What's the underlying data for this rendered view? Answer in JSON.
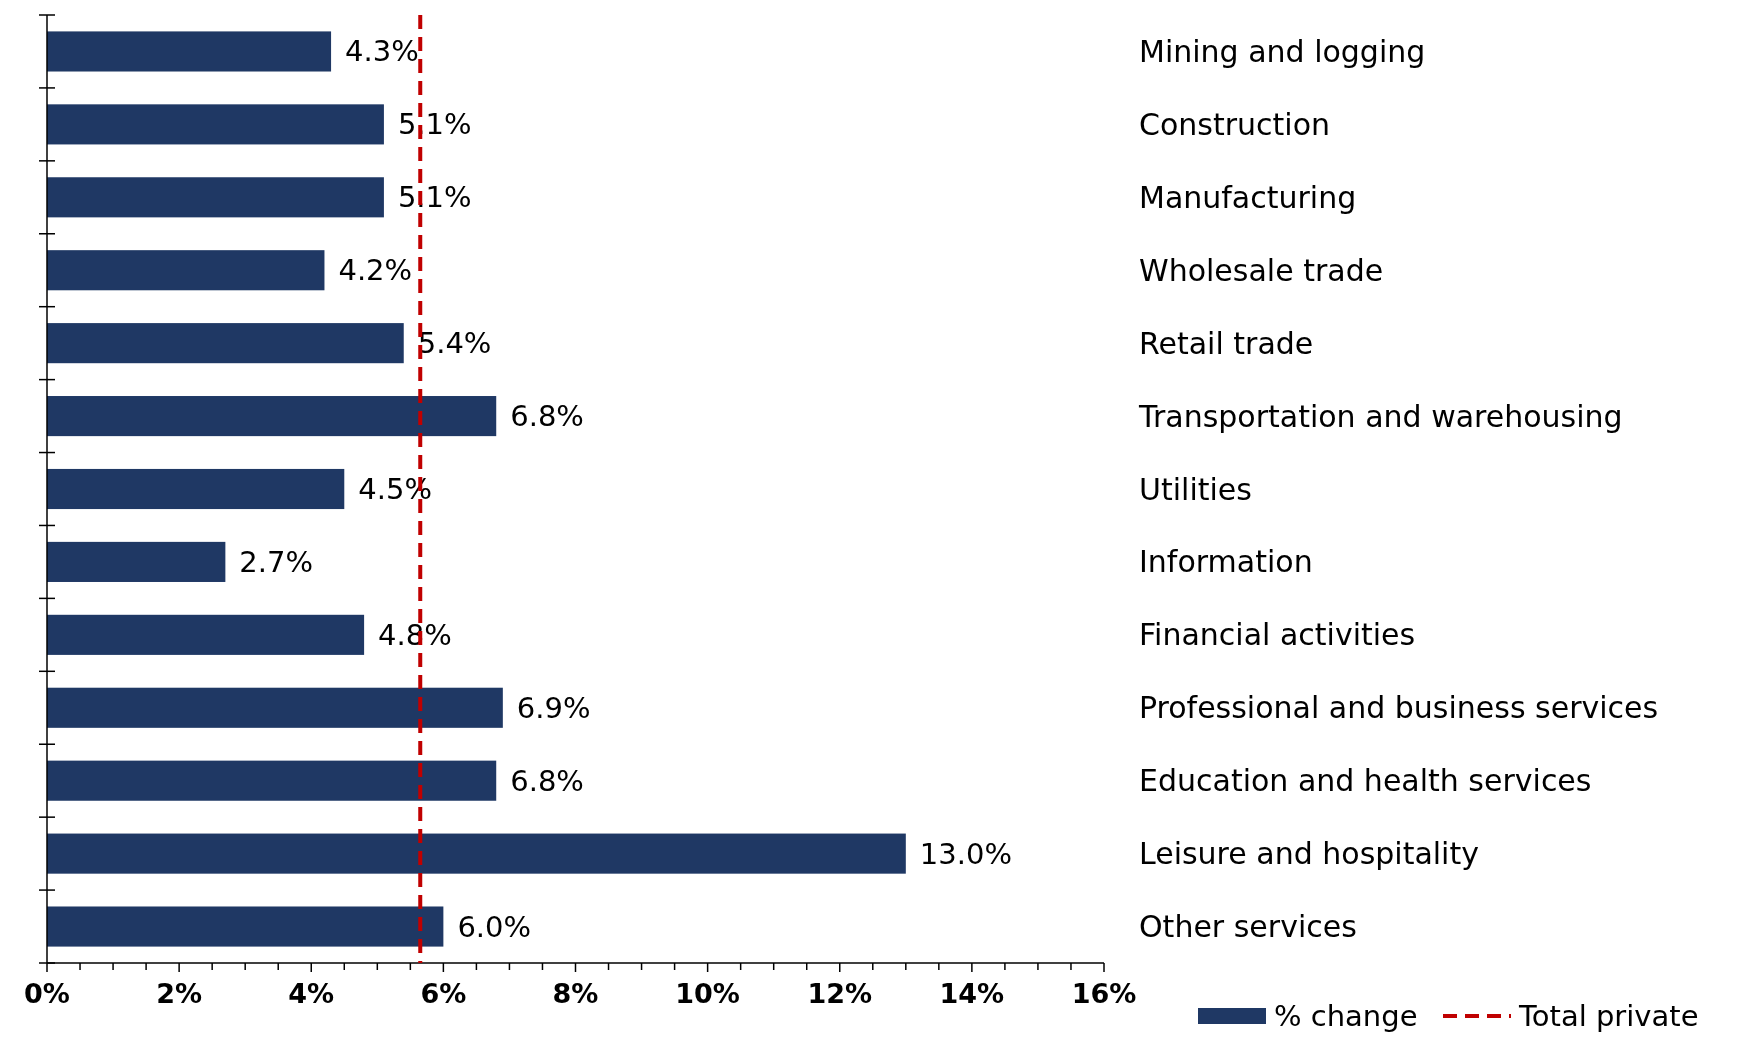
{
  "chart_data": {
    "type": "bar",
    "orientation": "horizontal",
    "categories": [
      "Mining and logging",
      "Construction",
      "Manufacturing",
      "Wholesale trade",
      "Retail trade",
      "Transportation and warehousing",
      "Utilities",
      "Information",
      "Financial activities",
      "Professional and business services",
      "Education and health services",
      "Leisure and hospitality",
      "Other services"
    ],
    "series": [
      {
        "name": "% change",
        "color": "#1f3864",
        "values": [
          4.3,
          5.1,
          5.1,
          4.2,
          5.4,
          6.8,
          4.5,
          2.7,
          4.8,
          6.9,
          6.8,
          13.0,
          6.0
        ],
        "value_labels": [
          "4.3%",
          "5.1%",
          "5.1%",
          "4.2%",
          "5.4%",
          "6.8%",
          "4.5%",
          "2.7%",
          "4.8%",
          "6.9%",
          "6.8%",
          "13.0%",
          "6.0%"
        ]
      }
    ],
    "xlim": [
      0,
      16
    ],
    "xticks": [
      {
        "value": 0,
        "label": "0%"
      },
      {
        "value": 0.5,
        "label": null
      },
      {
        "value": 1,
        "label": null
      },
      {
        "value": 1.5,
        "label": null
      },
      {
        "value": 2,
        "label": "2%"
      },
      {
        "value": 2.5,
        "label": null
      },
      {
        "value": 3,
        "label": null
      },
      {
        "value": 3.5,
        "label": null
      },
      {
        "value": 4,
        "label": "4%"
      },
      {
        "value": 4.5,
        "label": null
      },
      {
        "value": 5,
        "label": null
      },
      {
        "value": 5.5,
        "label": null
      },
      {
        "value": 6,
        "label": "6%"
      },
      {
        "value": 6.5,
        "label": null
      },
      {
        "value": 7,
        "label": null
      },
      {
        "value": 7.5,
        "label": null
      },
      {
        "value": 8,
        "label": "8%"
      },
      {
        "value": 8.5,
        "label": null
      },
      {
        "value": 9,
        "label": null
      },
      {
        "value": 9.5,
        "label": null
      },
      {
        "value": 10,
        "label": "10%"
      },
      {
        "value": 10.5,
        "label": null
      },
      {
        "value": 11,
        "label": null
      },
      {
        "value": 11.5,
        "label": null
      },
      {
        "value": 12,
        "label": "12%"
      },
      {
        "value": 12.5,
        "label": null
      },
      {
        "value": 13,
        "label": null
      },
      {
        "value": 13.5,
        "label": null
      },
      {
        "value": 14,
        "label": "14%"
      },
      {
        "value": 14.5,
        "label": null
      },
      {
        "value": 15,
        "label": null
      },
      {
        "value": 15.5,
        "label": null
      },
      {
        "value": 16,
        "label": "16%"
      }
    ],
    "ref_lines": [
      {
        "axis": "x",
        "value": 5.65,
        "label": "Total private",
        "color": "#c00000",
        "line_style": "dashed"
      }
    ],
    "grid": false,
    "legend": "bottom right"
  }
}
